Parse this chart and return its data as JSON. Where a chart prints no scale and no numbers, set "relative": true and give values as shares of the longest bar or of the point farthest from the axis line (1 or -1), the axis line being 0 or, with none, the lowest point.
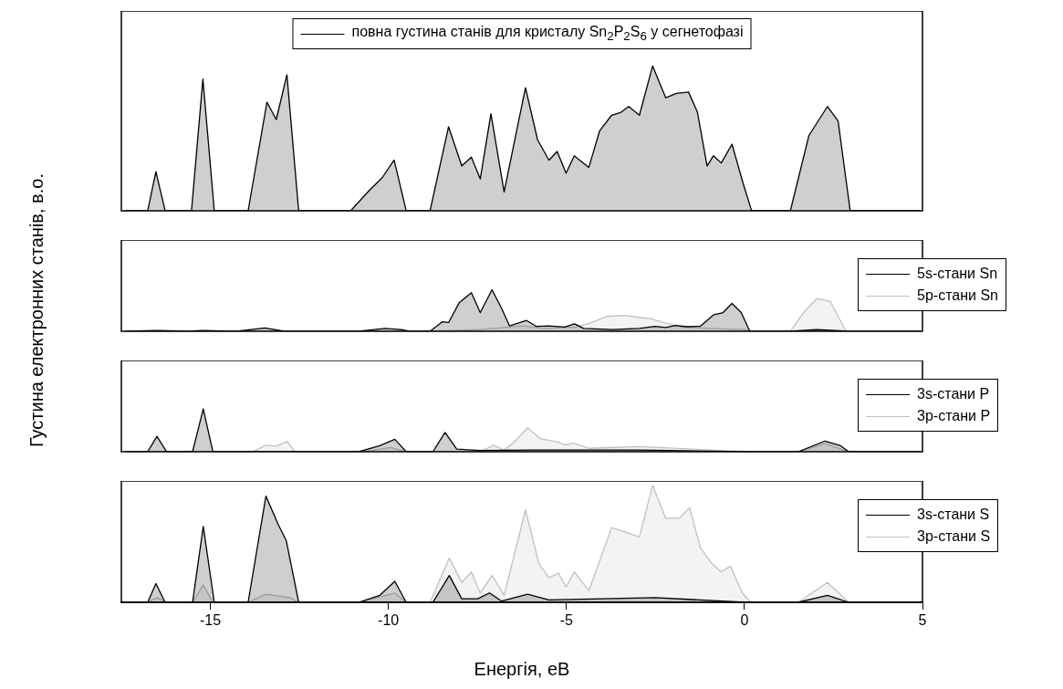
{
  "chart_data": [
    {
      "type": "area",
      "relative": true,
      "ylabel": "Густина електронних станів, в.о.",
      "xlim": [
        -17.5,
        5
      ],
      "tick_labels": false,
      "legend": "top",
      "series": [
        {
          "name": "повна густина станів для кристалу Sn$_{2}$P$_{2}$S$_{6}$ у сегнетофазі",
          "color": "#000000",
          "x": [
            -17.39,
            -16.76,
            -16.53,
            -16.27,
            -15.53,
            -15.21,
            -14.89,
            -13.94,
            -13.41,
            -13.15,
            -12.85,
            -12.52,
            -11.06,
            -10.54,
            -10.17,
            -9.84,
            -9.5,
            -8.83,
            -8.31,
            -7.94,
            -7.67,
            -7.42,
            -7.12,
            -6.75,
            -6.15,
            -5.81,
            -5.49,
            -5.26,
            -5.01,
            -4.78,
            -4.37,
            -4.07,
            -3.73,
            -3.47,
            -3.25,
            -2.95,
            -2.58,
            -2.21,
            -1.91,
            -1.57,
            -1.32,
            -1.05,
            -0.87,
            -0.65,
            -0.35,
            -0.05,
            0.2,
            1.29,
            1.81,
            2.33,
            2.63,
            2.97,
            4.94
          ],
          "values": [
            0,
            0,
            0.27,
            0,
            0,
            0.91,
            0,
            0,
            0.75,
            0.63,
            0.94,
            0,
            0,
            0.14,
            0.23,
            0.35,
            0,
            0,
            0.58,
            0.31,
            0.37,
            0.22,
            0.67,
            0.13,
            0.85,
            0.49,
            0.35,
            0.41,
            0.26,
            0.38,
            0.3,
            0.55,
            0.66,
            0.68,
            0.72,
            0.66,
            1,
            0.78,
            0.81,
            0.82,
            0.68,
            0.31,
            0.38,
            0.33,
            0.46,
            0.2,
            0,
            0,
            0.52,
            0.72,
            0.62,
            0,
            0
          ]
        }
      ]
    },
    {
      "type": "area",
      "relative": true,
      "xlim": [
        -17.5,
        5
      ],
      "tick_labels": false,
      "legend": "right",
      "series": [
        {
          "name": "5s-стани Sn",
          "color": "#000000",
          "x": [
            -17.39,
            -16.5,
            -15.6,
            -15.23,
            -14.26,
            -13.47,
            -12.92,
            -10.83,
            -10.09,
            -9.64,
            -9.41,
            -8.83,
            -8.48,
            -8.31,
            -8.01,
            -7.67,
            -7.42,
            -7.09,
            -6.82,
            -6.6,
            -6.12,
            -5.85,
            -5.49,
            -5.05,
            -4.77,
            -4.52,
            -3.7,
            -2.96,
            -2.51,
            -2.21,
            -1.94,
            -1.61,
            -1.24,
            -0.86,
            -0.6,
            -0.35,
            -0.09,
            0.15,
            1.29,
            2.03,
            2.93,
            4.94
          ],
          "values": [
            0,
            0.02,
            0,
            0.02,
            0,
            0.08,
            0,
            0,
            0.07,
            0.04,
            0,
            0,
            0.23,
            0.21,
            0.69,
            0.93,
            0.45,
            1,
            0.55,
            0.13,
            0.26,
            0.12,
            0.13,
            0.1,
            0.18,
            0.07,
            0.04,
            0.07,
            0.12,
            0.09,
            0.14,
            0.11,
            0.12,
            0.4,
            0.45,
            0.67,
            0.45,
            0,
            0,
            0.04,
            0,
            0
          ]
        },
        {
          "name": "5p-стани Sn",
          "color": "#c0c0c0",
          "x": [
            -17.39,
            -8.9,
            -7.42,
            -6.23,
            -5.64,
            -4.75,
            -4.37,
            -3.85,
            -3.32,
            -2.95,
            -2.66,
            -2.28,
            -1.76,
            -1.02,
            0.02,
            0.24,
            1.29,
            1.66,
            2.03,
            2.41,
            2.85,
            4.94
          ],
          "values": [
            0,
            0,
            0.04,
            0.13,
            0.07,
            0.1,
            0.19,
            0.36,
            0.38,
            0.33,
            0.31,
            0.21,
            0.1,
            0.07,
            0.04,
            0,
            0,
            0.45,
            0.79,
            0.72,
            0,
            0
          ]
        }
      ]
    },
    {
      "type": "area",
      "relative": true,
      "xlim": [
        -17.5,
        5
      ],
      "tick_labels": false,
      "legend": "right",
      "series": [
        {
          "name": "3s-стани P",
          "color": "#000000",
          "x": [
            -17.39,
            -16.76,
            -16.5,
            -16.23,
            -15.5,
            -15.2,
            -14.93,
            -10.83,
            -10.24,
            -9.82,
            -9.5,
            -8.75,
            -8.41,
            -8.08,
            -7.42,
            -5.93,
            -2.96,
            0.02,
            1.51,
            2.26,
            2.7,
            2.93,
            4.94
          ],
          "values": [
            0,
            0,
            0.36,
            0,
            0,
            1,
            0,
            0,
            0.14,
            0.29,
            0,
            0,
            0.45,
            0.06,
            0.03,
            0.04,
            0.04,
            0,
            0,
            0.25,
            0.14,
            0,
            0
          ]
        },
        {
          "name": "3p-стани P",
          "color": "#c0c0c0",
          "x": [
            -17.39,
            -13.81,
            -13.44,
            -13.15,
            -12.85,
            -12.62,
            -10.68,
            -9.94,
            -9.5,
            -7.42,
            -7.05,
            -6.75,
            -6.46,
            -6.09,
            -5.72,
            -5.26,
            -5.05,
            -4.8,
            -4.37,
            -2.95,
            -1.46,
            0.02,
            1.51,
            2.26,
            2.93,
            4.94
          ],
          "values": [
            0,
            0,
            0.15,
            0.13,
            0.24,
            0,
            0,
            0.1,
            0,
            0,
            0.15,
            0.04,
            0.23,
            0.56,
            0.3,
            0.23,
            0.16,
            0.2,
            0.08,
            0.12,
            0.06,
            0,
            0,
            0.19,
            0,
            0
          ]
        }
      ]
    },
    {
      "type": "area",
      "relative": true,
      "xlabel": "Енергія, еВ",
      "xlim": [
        -17.5,
        5
      ],
      "xticks": [
        -15,
        -10,
        -5,
        0,
        5
      ],
      "tick_labels": "x",
      "legend": "right",
      "series": [
        {
          "name": "3s-стани S",
          "color": "#000000",
          "x": [
            -17.39,
            -16.76,
            -16.53,
            -16.27,
            -15.5,
            -15.2,
            -14.89,
            -13.94,
            -13.44,
            -13.1,
            -12.87,
            -12.52,
            -10.83,
            -10.24,
            -9.82,
            -9.5,
            -8.75,
            -8.29,
            -7.94,
            -7.49,
            -7.16,
            -6.82,
            -6.09,
            -5.49,
            -2.51,
            0.02,
            1.51,
            2.33,
            2.93,
            4.94
          ],
          "values": [
            0,
            0,
            0.16,
            0,
            0,
            0.65,
            0,
            0,
            0.91,
            0.67,
            0.53,
            0,
            0,
            0.06,
            0.18,
            0,
            0,
            0.23,
            0.03,
            0.03,
            0.08,
            0.01,
            0.07,
            0.02,
            0.04,
            0,
            0,
            0.06,
            0,
            0
          ]
        },
        {
          "name": "3p-стани S",
          "color": "#c0c0c0",
          "x": [
            -17.39,
            -16.76,
            -16.5,
            -16.23,
            -15.5,
            -15.2,
            -14.93,
            -13.94,
            -13.44,
            -12.77,
            -12.52,
            -10.83,
            -9.82,
            -9.5,
            -8.83,
            -8.29,
            -7.94,
            -7.67,
            -7.42,
            -7.09,
            -6.75,
            -6.15,
            -5.77,
            -5.49,
            -5.22,
            -5.01,
            -4.78,
            -4.37,
            -4.07,
            -3.73,
            -3.32,
            -2.95,
            -2.58,
            -2.21,
            -1.84,
            -1.54,
            -1.24,
            -0.91,
            -0.65,
            -0.4,
            -0.06,
            0.17,
            1.51,
            2.33,
            2.93,
            4.94
          ],
          "values": [
            0,
            0,
            0.04,
            0,
            0,
            0.15,
            0,
            0,
            0.07,
            0.04,
            0,
            0,
            0.08,
            0,
            0,
            0.38,
            0.17,
            0.26,
            0.08,
            0.23,
            0.06,
            0.79,
            0.33,
            0.21,
            0.25,
            0.13,
            0.26,
            0.1,
            0.35,
            0.64,
            0.6,
            0.56,
            1,
            0.72,
            0.72,
            0.81,
            0.47,
            0.33,
            0.26,
            0.31,
            0.08,
            0,
            0,
            0.17,
            0,
            0
          ]
        }
      ]
    }
  ]
}
